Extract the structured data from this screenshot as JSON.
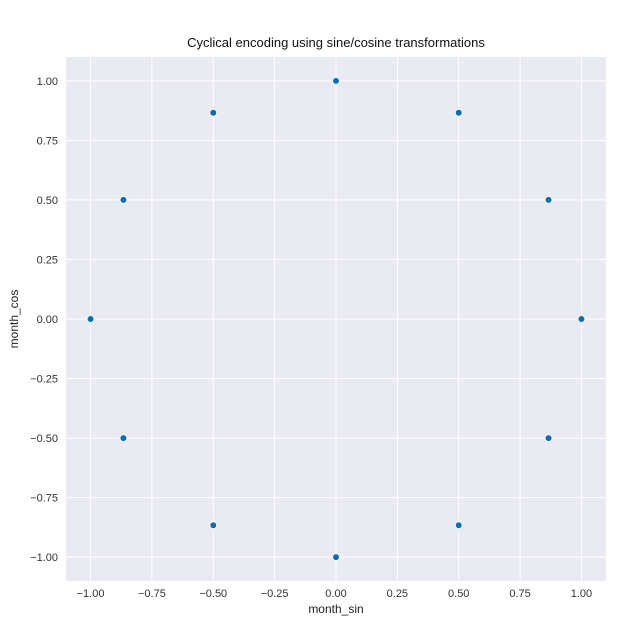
{
  "chart_data": {
    "type": "scatter",
    "title": "Cyclical encoding using sine/cosine transformations",
    "xlabel": "month_sin",
    "ylabel": "month_cos",
    "xlim": [
      -1.1,
      1.1
    ],
    "ylim": [
      -1.1,
      1.1
    ],
    "xticks": [
      -1.0,
      -0.75,
      -0.5,
      -0.25,
      0.0,
      0.25,
      0.5,
      0.75,
      1.0
    ],
    "xtick_labels": [
      "−1.00",
      "−0.75",
      "−0.50",
      "−0.25",
      "0.00",
      "0.25",
      "0.50",
      "0.75",
      "1.00"
    ],
    "yticks": [
      -1.0,
      -0.75,
      -0.5,
      -0.25,
      0.0,
      0.25,
      0.5,
      0.75,
      1.0
    ],
    "ytick_labels": [
      "−1.00",
      "−0.75",
      "−0.50",
      "−0.25",
      "0.00",
      "0.25",
      "0.50",
      "0.75",
      "1.00"
    ],
    "grid": true,
    "colors": {
      "background": "#eaeaf2",
      "grid": "#ffffff",
      "point": "#0b6fae"
    },
    "points": [
      {
        "x": 0.0,
        "y": 1.0
      },
      {
        "x": 0.5,
        "y": 0.866
      },
      {
        "x": 0.866,
        "y": 0.5
      },
      {
        "x": 1.0,
        "y": 0.0
      },
      {
        "x": 0.866,
        "y": -0.5
      },
      {
        "x": 0.5,
        "y": -0.866
      },
      {
        "x": 0.0,
        "y": -1.0
      },
      {
        "x": -0.5,
        "y": -0.866
      },
      {
        "x": -0.866,
        "y": -0.5
      },
      {
        "x": -1.0,
        "y": 0.0
      },
      {
        "x": -0.866,
        "y": 0.5
      },
      {
        "x": -0.5,
        "y": 0.866
      }
    ]
  }
}
